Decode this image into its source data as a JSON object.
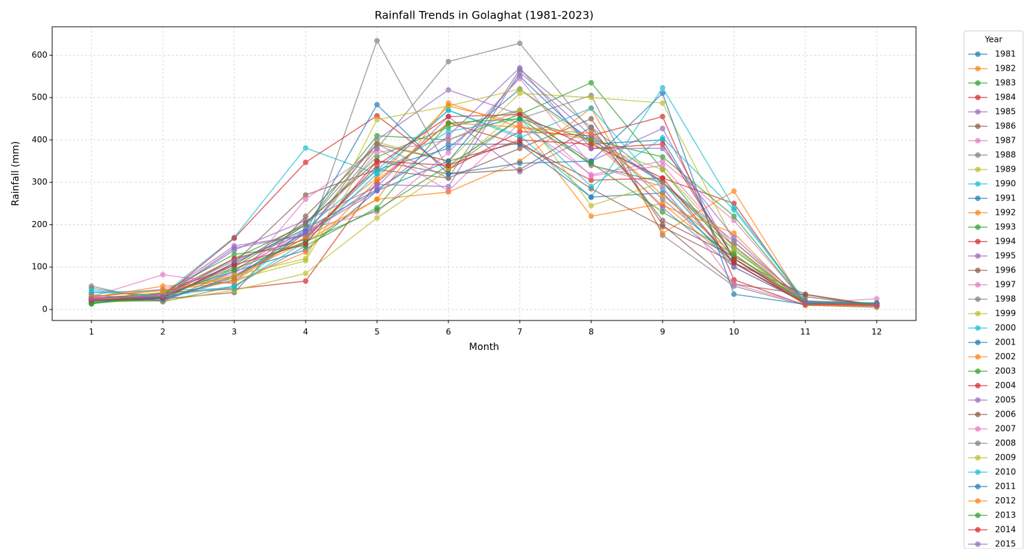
{
  "chart_data": {
    "type": "line",
    "title": "Rainfall Trends in Golaghat (1981-2023)",
    "xlabel": "Month",
    "ylabel": "Rainfall (mm)",
    "legend_title": "Year",
    "legend_loc": "outside-right",
    "grid": true,
    "x": [
      1,
      2,
      3,
      4,
      5,
      6,
      7,
      8,
      9,
      10,
      11,
      12
    ],
    "xlim": [
      0.45,
      12.55
    ],
    "xticks": [
      1,
      2,
      3,
      4,
      5,
      6,
      7,
      8,
      9,
      10,
      11,
      12
    ],
    "ylim": [
      -26,
      667
    ],
    "yticks": [
      0,
      100,
      200,
      300,
      400,
      500,
      600
    ],
    "series": [
      {
        "name": "1981",
        "color": "#1f77b4",
        "values": [
          25,
          20,
          80,
          170,
          330,
          380,
          520,
          400,
          300,
          110,
          15,
          10
        ]
      },
      {
        "name": "1982",
        "color": "#ff7f0e",
        "values": [
          30,
          45,
          65,
          180,
          310,
          480,
          440,
          220,
          250,
          110,
          12,
          8
        ]
      },
      {
        "name": "1983",
        "color": "#2ca02c",
        "values": [
          15,
          30,
          100,
          200,
          410,
          400,
          460,
          535,
          330,
          120,
          20,
          15
        ]
      },
      {
        "name": "1984",
        "color": "#d62728",
        "values": [
          20,
          40,
          48,
          67,
          300,
          440,
          390,
          305,
          310,
          250,
          12,
          10
        ]
      },
      {
        "name": "1985",
        "color": "#9467bd",
        "values": [
          28,
          35,
          150,
          175,
          400,
          518,
          460,
          350,
          427,
          120,
          18,
          12
        ]
      },
      {
        "name": "1986",
        "color": "#8c564b",
        "values": [
          22,
          25,
          110,
          270,
          330,
          310,
          380,
          450,
          200,
          60,
          35,
          8
        ]
      },
      {
        "name": "1987",
        "color": "#e377c2",
        "values": [
          30,
          82,
          60,
          260,
          380,
          280,
          440,
          318,
          350,
          210,
          15,
          25
        ]
      },
      {
        "name": "1988",
        "color": "#7f7f7f",
        "values": [
          55,
          18,
          55,
          150,
          634,
          330,
          450,
          505,
          175,
          55,
          10,
          5
        ]
      },
      {
        "name": "1989",
        "color": "#bcbd22",
        "values": [
          20,
          30,
          70,
          115,
          395,
          350,
          510,
          500,
          487,
          160,
          12,
          10
        ]
      },
      {
        "name": "1990",
        "color": "#17becf",
        "values": [
          40,
          35,
          170,
          381,
          320,
          470,
          410,
          265,
          523,
          240,
          20,
          15
        ]
      },
      {
        "name": "1991",
        "color": "#1f77b4",
        "values": [
          18,
          22,
          110,
          190,
          283,
          390,
          390,
          265,
          275,
          110,
          15,
          12
        ]
      },
      {
        "name": "1992",
        "color": "#ff7f0e",
        "values": [
          25,
          40,
          80,
          160,
          260,
          277,
          350,
          475,
          180,
          279,
          10,
          8
        ]
      },
      {
        "name": "1993",
        "color": "#2ca02c",
        "values": [
          14,
          28,
          120,
          200,
          360,
          430,
          470,
          340,
          300,
          140,
          18,
          14
        ]
      },
      {
        "name": "1994",
        "color": "#d62728",
        "values": [
          22,
          30,
          168,
          347,
          457,
          330,
          420,
          410,
          455,
          70,
          10,
          8
        ]
      },
      {
        "name": "1995",
        "color": "#9467bd",
        "values": [
          26,
          30,
          140,
          210,
          290,
          455,
          325,
          410,
          300,
          160,
          20,
          12
        ]
      },
      {
        "name": "1996",
        "color": "#8c564b",
        "values": [
          20,
          25,
          40,
          220,
          390,
          350,
          395,
          285,
          195,
          110,
          36,
          10
        ]
      },
      {
        "name": "1997",
        "color": "#e377c2",
        "values": [
          30,
          48,
          95,
          180,
          370,
          400,
          470,
          315,
          340,
          150,
          16,
          14
        ]
      },
      {
        "name": "1998",
        "color": "#7f7f7f",
        "values": [
          50,
          25,
          70,
          180,
          380,
          585,
          628,
          420,
          260,
          120,
          20,
          8
        ]
      },
      {
        "name": "1999",
        "color": "#bcbd22",
        "values": [
          18,
          20,
          45,
          85,
          216,
          330,
          470,
          245,
          300,
          150,
          12,
          10
        ]
      },
      {
        "name": "2000",
        "color": "#17becf",
        "values": [
          40,
          45,
          50,
          190,
          330,
          470,
          405,
          475,
          285,
          100,
          15,
          10
        ]
      },
      {
        "name": "2001",
        "color": "#1f77b4",
        "values": [
          22,
          35,
          90,
          140,
          280,
          350,
          550,
          390,
          400,
          120,
          15,
          12
        ]
      },
      {
        "name": "2002",
        "color": "#ff7f0e",
        "values": [
          28,
          55,
          65,
          135,
          305,
          440,
          430,
          400,
          245,
          180,
          10,
          8
        ]
      },
      {
        "name": "2003",
        "color": "#2ca02c",
        "values": [
          13,
          40,
          130,
          150,
          240,
          440,
          450,
          400,
          360,
          220,
          15,
          12
        ]
      },
      {
        "name": "2004",
        "color": "#d62728",
        "values": [
          25,
          35,
          120,
          165,
          340,
          455,
          460,
          380,
          390,
          120,
          12,
          10
        ]
      },
      {
        "name": "2005",
        "color": "#9467bd",
        "values": [
          20,
          30,
          145,
          175,
          295,
          290,
          560,
          410,
          240,
          100,
          16,
          12
        ]
      },
      {
        "name": "2006",
        "color": "#8c564b",
        "values": [
          25,
          38,
          105,
          205,
          350,
          320,
          330,
          430,
          210,
          125,
          30,
          10
        ]
      },
      {
        "name": "2007",
        "color": "#e377c2",
        "values": [
          24,
          35,
          85,
          190,
          230,
          370,
          545,
          340,
          290,
          60,
          12,
          10
        ]
      },
      {
        "name": "2008",
        "color": "#7f7f7f",
        "values": [
          35,
          20,
          90,
          200,
          390,
          310,
          566,
          430,
          300,
          150,
          15,
          10
        ]
      },
      {
        "name": "2009",
        "color": "#bcbd22",
        "values": [
          20,
          40,
          80,
          120,
          448,
          480,
          520,
          390,
          330,
          145,
          14,
          10
        ]
      },
      {
        "name": "2010",
        "color": "#17becf",
        "values": [
          45,
          30,
          55,
          160,
          320,
          420,
          450,
          290,
          405,
          235,
          18,
          12
        ]
      },
      {
        "name": "2011",
        "color": "#1f77b4",
        "values": [
          20,
          25,
          75,
          185,
          483,
          320,
          345,
          350,
          510,
          36,
          12,
          15
        ]
      },
      {
        "name": "2012",
        "color": "#ff7f0e",
        "values": [
          30,
          45,
          75,
          170,
          260,
          487,
          430,
          415,
          270,
          130,
          10,
          8
        ]
      },
      {
        "name": "2013",
        "color": "#2ca02c",
        "values": [
          15,
          30,
          95,
          160,
          235,
          340,
          450,
          345,
          230,
          130,
          16,
          14
        ]
      },
      {
        "name": "2014",
        "color": "#d62728",
        "values": [
          22,
          28,
          105,
          155,
          350,
          340,
          400,
          390,
          310,
          110,
          14,
          10
        ]
      },
      {
        "name": "2015",
        "color": "#9467bd",
        "values": [
          26,
          32,
          115,
          180,
          280,
          410,
          570,
          380,
          380,
          170,
          15,
          12
        ]
      }
    ]
  }
}
